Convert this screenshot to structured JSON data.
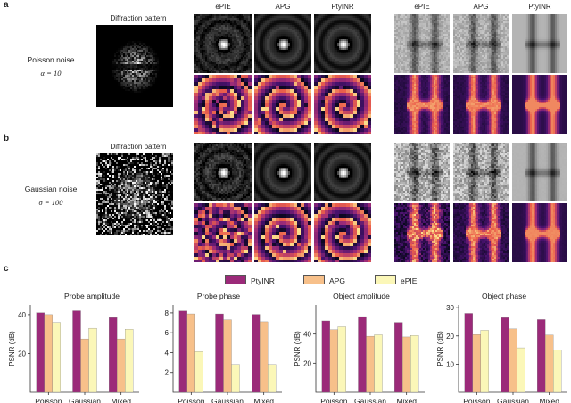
{
  "panels": {
    "a": {
      "letter": "a",
      "diffraction_title": "Diffraction pattern",
      "noise_name": "Poisson noise",
      "noise_param": "α = 10",
      "method_headers": [
        "ePIE",
        "APG",
        "PtyINR"
      ],
      "object_headers": [
        "ePIE",
        "APG",
        "PtyINR"
      ]
    },
    "b": {
      "letter": "b",
      "diffraction_title": "Diffraction pattern",
      "noise_name": "Gaussian noise",
      "noise_param": "σ = 100"
    },
    "c": {
      "letter": "c"
    }
  },
  "legend": [
    {
      "name": "PtyINR",
      "color": "#9b2a79"
    },
    {
      "name": "APG",
      "color": "#f7c08a"
    },
    {
      "name": "ePIE",
      "color": "#fbf7b8"
    }
  ],
  "chart_data": [
    {
      "type": "bar",
      "title": "Probe amplitude",
      "ylabel": "PSNR (dB)",
      "categories": [
        "Poisson",
        "Gaussian",
        "Mixed"
      ],
      "ylim": [
        0,
        45
      ],
      "yticks": [
        20,
        40
      ],
      "series": [
        {
          "name": "PtyINR",
          "values": [
            41,
            42,
            38.5
          ]
        },
        {
          "name": "APG",
          "values": [
            40,
            27.5,
            27.5
          ]
        },
        {
          "name": "ePIE",
          "values": [
            36,
            33,
            32.5
          ]
        }
      ]
    },
    {
      "type": "bar",
      "title": "Probe phase",
      "ylabel": "",
      "categories": [
        "Poisson",
        "Gaussian",
        "Mixed"
      ],
      "ylim": [
        0,
        8.8
      ],
      "yticks": [
        2,
        4,
        6,
        8
      ],
      "series": [
        {
          "name": "PtyINR",
          "values": [
            8.2,
            7.9,
            7.85
          ]
        },
        {
          "name": "APG",
          "values": [
            7.9,
            7.3,
            7.1
          ]
        },
        {
          "name": "ePIE",
          "values": [
            4.1,
            2.8,
            2.8
          ]
        }
      ]
    },
    {
      "type": "bar",
      "title": "Object amplitude",
      "ylabel": "PSNR (dB)",
      "categories": [
        "Poisson",
        "Gaussian",
        "Mixed"
      ],
      "ylim": [
        0,
        60
      ],
      "yticks": [
        20,
        40
      ],
      "series": [
        {
          "name": "PtyINR",
          "values": [
            49,
            52,
            48
          ]
        },
        {
          "name": "APG",
          "values": [
            43,
            38.5,
            38
          ]
        },
        {
          "name": "ePIE",
          "values": [
            45,
            39.5,
            39
          ]
        }
      ]
    },
    {
      "type": "bar",
      "title": "Object phase",
      "ylabel": "PSNR (dB)",
      "categories": [
        "Poisson",
        "Gaussian",
        "Mixed"
      ],
      "ylim": [
        0,
        31
      ],
      "yticks": [
        10,
        20,
        30
      ],
      "series": [
        {
          "name": "PtyINR",
          "values": [
            28,
            26.5,
            25.8
          ]
        },
        {
          "name": "APG",
          "values": [
            20.5,
            22.5,
            20.3
          ]
        },
        {
          "name": "ePIE",
          "values": [
            22,
            15.8,
            15
          ]
        }
      ]
    }
  ]
}
